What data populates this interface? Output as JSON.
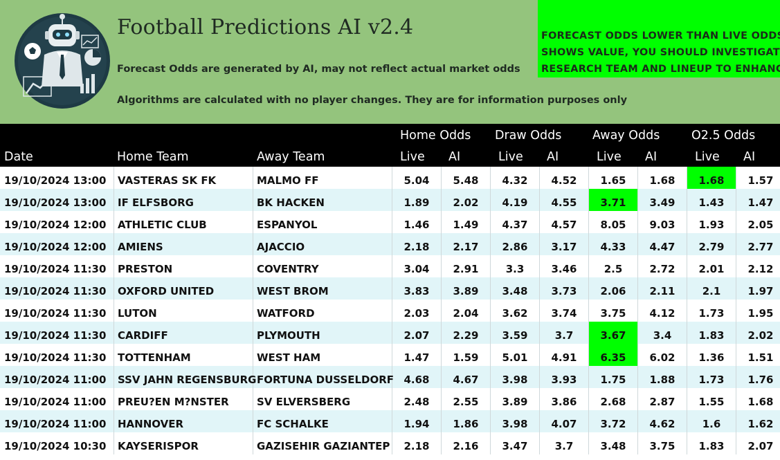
{
  "header": {
    "title": "Football Predictions AI v2.4",
    "subtitle1": "Forecast Odds are generated by AI, may not reflect actual market odds",
    "subtitle2": "Algorithms are calculated with no player changes. They are for information purposes only",
    "notice": [
      "FORECAST ODDS LOWER THAN LIVE ODDS",
      "SHOWS VALUE, YOU SHOULD INVESTIGATE",
      "RESEARCH TEAM AND LINEUP TO ENHANCE"
    ]
  },
  "colors": {
    "header_bg": "#94c47d",
    "notice_bg": "#00ff00",
    "highlight": "#00ff00",
    "row_alt": "#e1f5f8",
    "table_head_bg": "#000000"
  },
  "table": {
    "groups": {
      "home": "Home Odds",
      "draw": "Draw Odds",
      "away": "Away Odds",
      "o25": "O2.5 Odds"
    },
    "columns": {
      "date": "Date",
      "home_team": "Home Team",
      "away_team": "Away Team",
      "live": "Live",
      "ai": "AI"
    },
    "rows": [
      {
        "date": "19/10/2024 13:00",
        "home": "VASTERAS SK FK",
        "away": "MALMO FF",
        "odds": [
          "5.04",
          "5.48",
          "4.32",
          "4.52",
          "1.65",
          "1.68",
          "1.68",
          "1.57"
        ],
        "highlight": [
          6
        ]
      },
      {
        "date": "19/10/2024 13:00",
        "home": "IF ELFSBORG",
        "away": "BK HACKEN",
        "odds": [
          "1.89",
          "2.02",
          "4.19",
          "4.55",
          "3.71",
          "3.49",
          "1.43",
          "1.47"
        ],
        "highlight": [
          4
        ]
      },
      {
        "date": "19/10/2024 12:00",
        "home": "ATHLETIC CLUB",
        "away": "ESPANYOL",
        "odds": [
          "1.46",
          "1.49",
          "4.37",
          "4.57",
          "8.05",
          "9.03",
          "1.93",
          "2.05"
        ],
        "highlight": []
      },
      {
        "date": "19/10/2024 12:00",
        "home": "AMIENS",
        "away": "AJACCIO",
        "odds": [
          "2.18",
          "2.17",
          "2.86",
          "3.17",
          "4.33",
          "4.47",
          "2.79",
          "2.77"
        ],
        "highlight": []
      },
      {
        "date": "19/10/2024 11:30",
        "home": "PRESTON",
        "away": "COVENTRY",
        "odds": [
          "3.04",
          "2.91",
          "3.3",
          "3.46",
          "2.5",
          "2.72",
          "2.01",
          "2.12"
        ],
        "highlight": []
      },
      {
        "date": "19/10/2024 11:30",
        "home": "OXFORD UNITED",
        "away": "WEST BROM",
        "odds": [
          "3.83",
          "3.89",
          "3.48",
          "3.73",
          "2.06",
          "2.11",
          "2.1",
          "1.97"
        ],
        "highlight": []
      },
      {
        "date": "19/10/2024 11:30",
        "home": "LUTON",
        "away": "WATFORD",
        "odds": [
          "2.03",
          "2.04",
          "3.62",
          "3.74",
          "3.75",
          "4.12",
          "1.73",
          "1.95"
        ],
        "highlight": []
      },
      {
        "date": "19/10/2024 11:30",
        "home": "CARDIFF",
        "away": "PLYMOUTH",
        "odds": [
          "2.07",
          "2.29",
          "3.59",
          "3.7",
          "3.67",
          "3.4",
          "1.83",
          "2.02"
        ],
        "highlight": [
          4
        ]
      },
      {
        "date": "19/10/2024 11:30",
        "home": "TOTTENHAM",
        "away": "WEST HAM",
        "odds": [
          "1.47",
          "1.59",
          "5.01",
          "4.91",
          "6.35",
          "6.02",
          "1.36",
          "1.51"
        ],
        "highlight": [
          4
        ]
      },
      {
        "date": "19/10/2024 11:00",
        "home": "SSV JAHN REGENSBURG",
        "away": "FORTUNA DUSSELDORF",
        "odds": [
          "4.68",
          "4.67",
          "3.98",
          "3.93",
          "1.75",
          "1.88",
          "1.73",
          "1.76"
        ],
        "highlight": []
      },
      {
        "date": "19/10/2024 11:00",
        "home": "PREU?EN M?NSTER",
        "away": "SV ELVERSBERG",
        "odds": [
          "2.48",
          "2.55",
          "3.89",
          "3.86",
          "2.68",
          "2.87",
          "1.55",
          "1.68"
        ],
        "highlight": []
      },
      {
        "date": "19/10/2024 11:00",
        "home": "HANNOVER",
        "away": "FC SCHALKE",
        "odds": [
          "1.94",
          "1.86",
          "3.98",
          "4.07",
          "3.72",
          "4.62",
          "1.6",
          "1.62"
        ],
        "highlight": []
      },
      {
        "date": "19/10/2024 10:30",
        "home": "KAYSERISPOR",
        "away": "GAZISEHIR GAZIANTEP",
        "odds": [
          "2.18",
          "2.16",
          "3.47",
          "3.7",
          "3.48",
          "3.75",
          "1.83",
          "2.07"
        ],
        "highlight": []
      }
    ]
  }
}
